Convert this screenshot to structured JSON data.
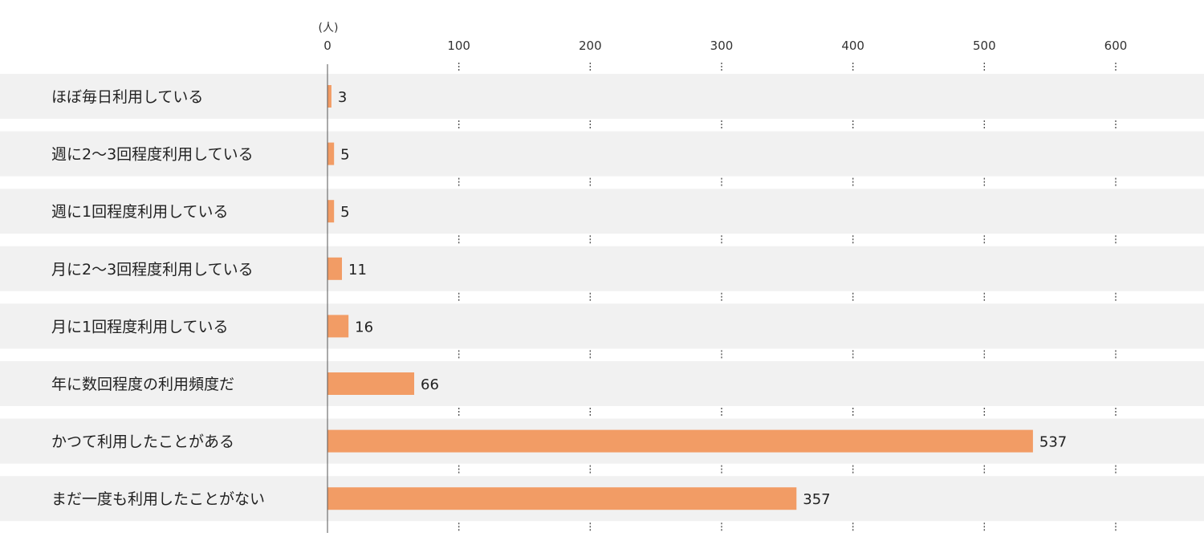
{
  "chart_data": {
    "type": "bar",
    "orientation": "horizontal",
    "unit": "(人)",
    "categories": [
      "ほぼ毎日利用している",
      "週に2〜3回程度利用している",
      "週に1回程度利用している",
      "月に2〜3回程度利用している",
      "月に1回程度利用している",
      "年に数回程度の利用頻度だ",
      "かつて利用したことがある",
      "まだ一度も利用したことがない"
    ],
    "values": [
      3,
      5,
      5,
      11,
      16,
      66,
      537,
      357
    ],
    "value_labels": [
      "3",
      "5",
      "5",
      "11",
      "16",
      "66",
      "537",
      "357"
    ],
    "xticks": [
      0,
      100,
      200,
      300,
      400,
      500,
      600
    ],
    "xtick_labels": [
      "0",
      "100",
      "200",
      "300",
      "400",
      "500",
      "600"
    ],
    "xlim": [
      0,
      600
    ],
    "grid": true,
    "colors": {
      "bar": "#f29c65",
      "band": "#f1f1f1",
      "axis": "#555555",
      "grid": "#555555"
    }
  }
}
